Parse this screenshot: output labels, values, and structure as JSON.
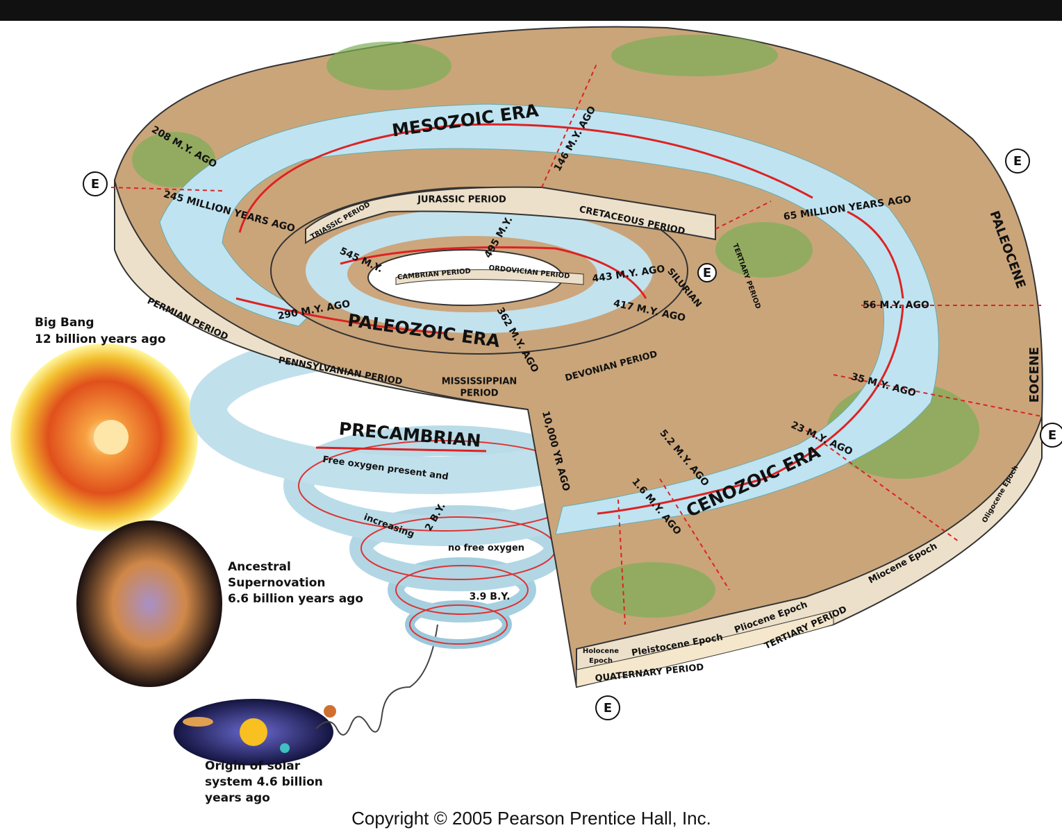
{
  "eras": [
    "MESOZOIC ERA",
    "PALEOZOIC ERA",
    "CENOZOIC ERA",
    "PRECAMBRIAN"
  ],
  "time_labels": [
    "208 M.Y. AGO",
    "245 MILLION YEARS AGO",
    "146 M.Y. AGO",
    "65 MILLION YEARS AGO",
    "56 M.Y. AGO",
    "35 M.Y. AGO",
    "23 M.Y. AGO",
    "5.2 M.Y. AGO",
    "1.6 M.Y. AGO",
    "10,000 YR AGO",
    "545 M.Y.",
    "495 M.Y.",
    "443 M.Y. AGO",
    "417 M.Y. AGO",
    "362 M.Y. AGO",
    "290 M.Y. AGO",
    "2 B.Y.",
    "3.9 B.Y."
  ],
  "periods": [
    "JURASSIC PERIOD",
    "TRIASSIC PERIOD",
    "CRETACEOUS PERIOD",
    "TERTIARY PERIOD",
    "CAMBRIAN PERIOD",
    "ORDOVICIAN PERIOD",
    "SILURIAN",
    "PERMIAN PERIOD",
    "PENNSYLVANIAN PERIOD",
    [
      "MISSISSIPPIAN",
      "PERIOD"
    ],
    "DEVONIAN PERIOD",
    "TERTIARY PERIOD",
    "QUATERNARY PERIOD"
  ],
  "epochs": [
    [
      "Holocene",
      "Epoch"
    ],
    "Pleistocene Epoch",
    "Pliocene Epoch",
    "Miocene Epoch",
    "Oligocene Epoch",
    "PALEOCENE",
    "EOCENE"
  ],
  "oxygen_notes": [
    "Free oxygen present and",
    "increasing",
    "no free oxygen"
  ],
  "era_boundary_marker": "E",
  "cosmic_events": [
    [
      "Big Bang",
      "12 billion years ago"
    ],
    [
      "Ancestral",
      "Supernovation",
      "6.6 billion years ago"
    ],
    [
      "Origin of solar",
      "system 4.6 billion",
      "years ago"
    ]
  ],
  "copyright": "Copyright © 2005 Pearson Prentice Hall, Inc."
}
